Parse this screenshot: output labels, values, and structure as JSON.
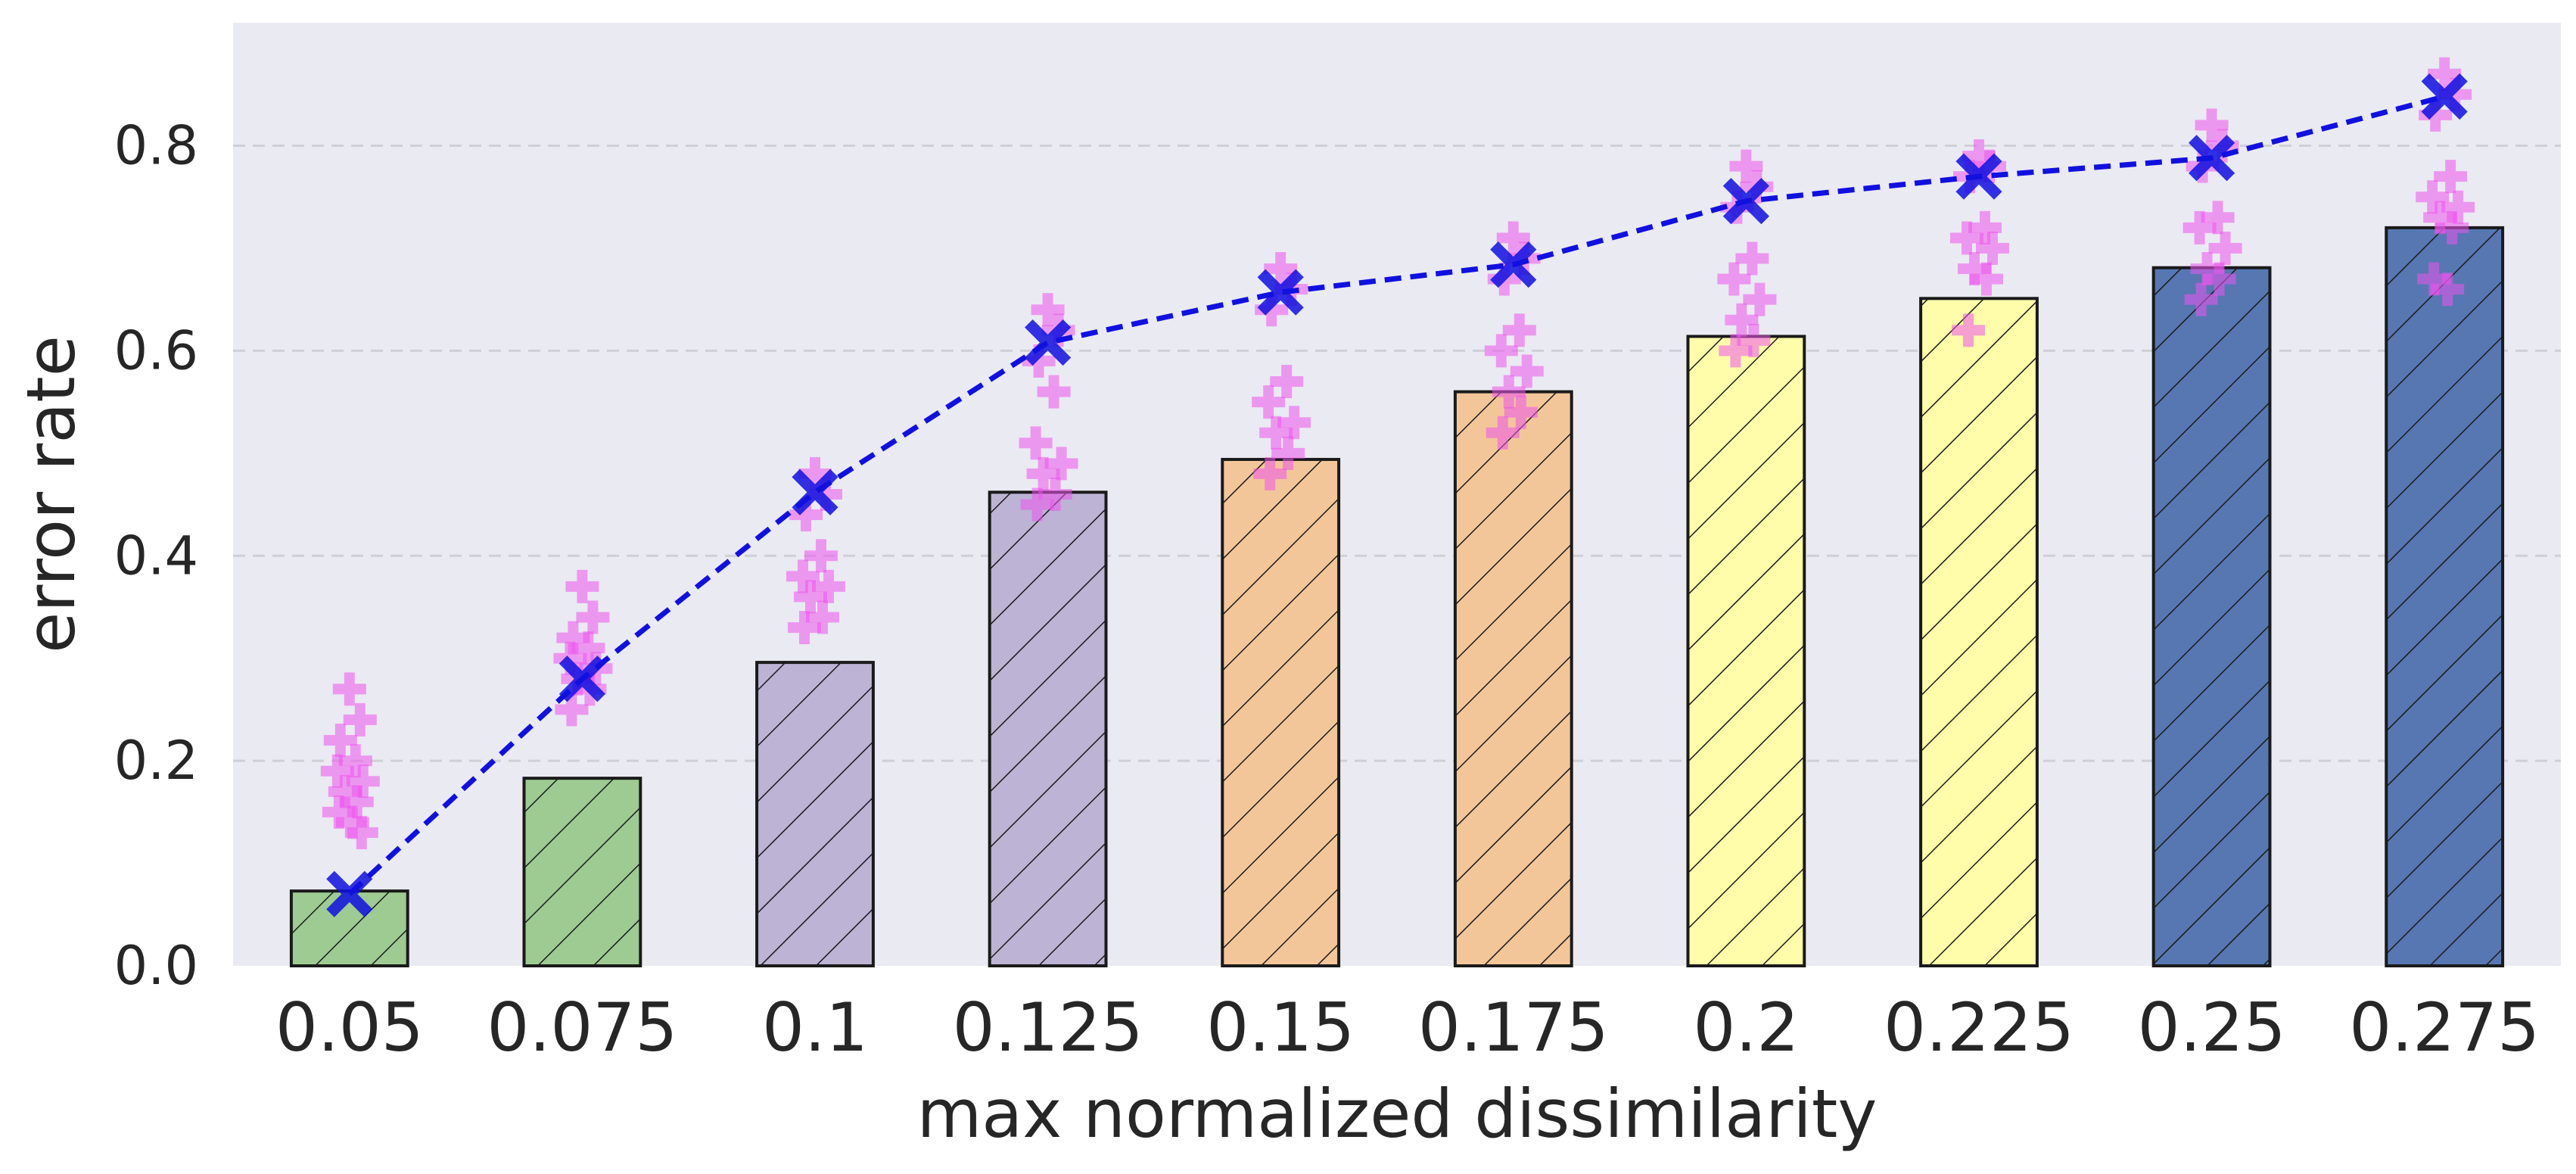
{
  "chart_data": {
    "type": "bar",
    "title": "",
    "xlabel": "max normalized dissimilarity",
    "ylabel": "error rate",
    "ylim": [
      0.0,
      0.92
    ],
    "yticks": [
      "0.0",
      "0.2",
      "0.4",
      "0.6",
      "0.8"
    ],
    "grid": "horizontal dashed",
    "categories": [
      "0.05",
      "0.075",
      "0.1",
      "0.125",
      "0.15",
      "0.175",
      "0.2",
      "0.225",
      "0.25",
      "0.275"
    ],
    "series": [
      {
        "name": "bar",
        "values": [
          0.073,
          0.183,
          0.296,
          0.462,
          0.494,
          0.56,
          0.614,
          0.651,
          0.681,
          0.72
        ],
        "colors": [
          "#9dcb92",
          "#9dcb92",
          "#bcb3d5",
          "#bcb3d5",
          "#f3c699",
          "#f3c699",
          "#fffdaa",
          "#fffdaa",
          "#5677b2",
          "#5677b2"
        ],
        "hatch": "//"
      },
      {
        "name": "line",
        "style": "dashed",
        "marker": "X",
        "color": "#1010e0",
        "values": [
          0.07,
          0.28,
          0.462,
          0.608,
          0.657,
          0.684,
          0.746,
          0.77,
          0.788,
          0.848
        ]
      }
    ],
    "scatter_color": "#ee55ee",
    "scatter": [
      [
        0.27,
        0.24,
        0.22,
        0.2,
        0.19,
        0.18,
        0.17,
        0.16,
        0.15,
        0.14,
        0.13
      ],
      [
        0.37,
        0.34,
        0.32,
        0.31,
        0.3,
        0.29,
        0.28,
        0.27,
        0.25
      ],
      [
        0.48,
        0.46,
        0.44,
        0.4,
        0.38,
        0.37,
        0.36,
        0.34,
        0.33
      ],
      [
        0.64,
        0.62,
        0.59,
        0.56,
        0.51,
        0.49,
        0.48,
        0.46,
        0.45
      ],
      [
        0.68,
        0.66,
        0.64,
        0.57,
        0.55,
        0.53,
        0.52,
        0.5,
        0.48
      ],
      [
        0.71,
        0.69,
        0.67,
        0.62,
        0.6,
        0.58,
        0.56,
        0.54,
        0.52
      ],
      [
        0.78,
        0.76,
        0.74,
        0.69,
        0.67,
        0.65,
        0.63,
        0.61,
        0.6
      ],
      [
        0.79,
        0.78,
        0.77,
        0.72,
        0.71,
        0.7,
        0.68,
        0.67,
        0.62
      ],
      [
        0.82,
        0.8,
        0.78,
        0.73,
        0.72,
        0.7,
        0.68,
        0.67,
        0.65
      ],
      [
        0.87,
        0.85,
        0.83,
        0.77,
        0.75,
        0.74,
        0.73,
        0.72,
        0.67,
        0.66
      ]
    ]
  }
}
